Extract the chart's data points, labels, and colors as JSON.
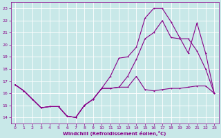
{
  "xlabel": "Windchill (Refroidissement éolien,°C)",
  "bg_color": "#c8e8e8",
  "grid_color": "#b0d0d0",
  "line_color": "#880088",
  "xlim": [
    0,
    23
  ],
  "ylim": [
    13.5,
    23.5
  ],
  "xticks": [
    0,
    1,
    2,
    3,
    4,
    5,
    6,
    7,
    8,
    9,
    10,
    11,
    12,
    13,
    14,
    15,
    16,
    17,
    18,
    19,
    20,
    21,
    22,
    23
  ],
  "yticks": [
    14,
    15,
    16,
    17,
    18,
    19,
    20,
    21,
    22,
    23
  ],
  "line1_x": [
    0,
    1,
    2,
    3,
    4,
    5,
    6,
    7,
    8,
    9,
    10,
    11,
    12,
    13,
    14,
    15,
    16,
    17,
    18,
    19,
    20,
    21,
    22,
    23
  ],
  "line1_y": [
    16.7,
    16.2,
    15.5,
    14.8,
    14.9,
    14.9,
    14.1,
    14.0,
    15.0,
    15.5,
    16.4,
    16.4,
    16.5,
    16.5,
    17.4,
    16.3,
    16.2,
    16.3,
    16.4,
    16.4,
    16.5,
    16.6,
    16.6,
    16.0
  ],
  "line2_x": [
    0,
    1,
    2,
    3,
    4,
    5,
    6,
    7,
    8,
    9,
    10,
    11,
    12,
    13,
    14,
    15,
    16,
    17,
    18,
    19,
    20,
    21,
    22,
    23
  ],
  "line2_y": [
    16.7,
    16.2,
    15.5,
    14.8,
    14.9,
    14.9,
    14.1,
    14.0,
    15.0,
    15.5,
    16.4,
    17.4,
    18.9,
    19.0,
    19.8,
    22.2,
    23.0,
    23.0,
    21.9,
    20.6,
    19.3,
    21.8,
    19.3,
    16.0
  ],
  "line3_x": [
    0,
    1,
    2,
    3,
    4,
    5,
    6,
    7,
    8,
    9,
    10,
    11,
    12,
    13,
    14,
    15,
    16,
    17,
    18,
    19,
    20,
    21,
    22,
    23
  ],
  "line3_y": [
    16.7,
    16.2,
    15.5,
    14.8,
    14.9,
    14.9,
    14.1,
    14.0,
    15.0,
    15.5,
    16.4,
    16.4,
    16.5,
    17.4,
    18.8,
    20.5,
    21.0,
    22.0,
    20.6,
    20.5,
    20.5,
    19.5,
    18.0,
    16.0
  ]
}
